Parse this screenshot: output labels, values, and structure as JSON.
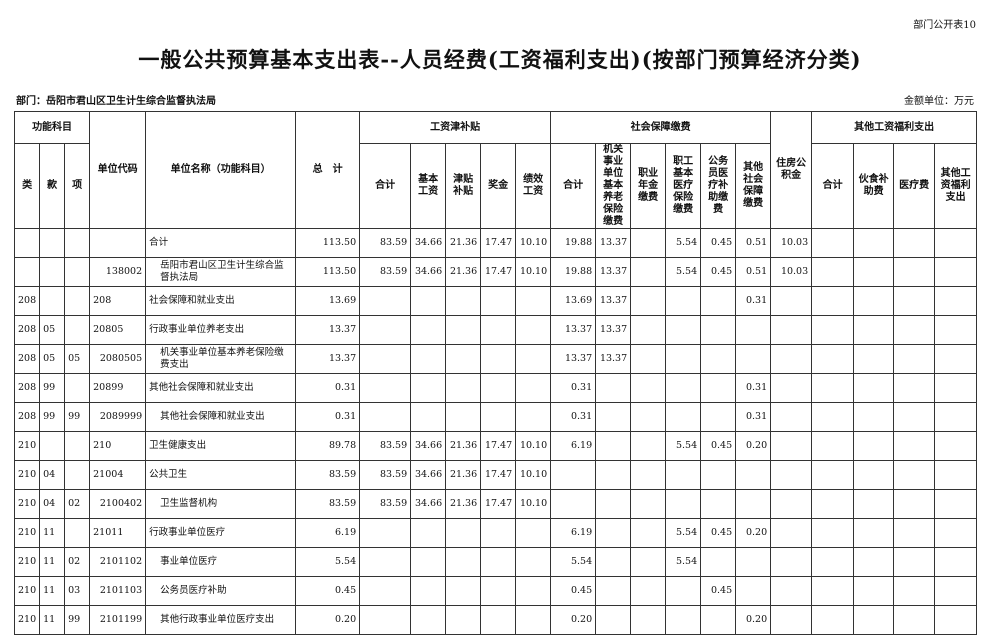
{
  "form_no": "部门公开表10",
  "title": "一般公共预算基本支出表--人员经费(工资福利支出)(按部门预算经济分类)",
  "department": "部门：岳阳市君山区卫生计生综合监督执法局",
  "unit": "金额单位：万元",
  "headers": {
    "func": "功能科目",
    "lei": "类",
    "kuan": "款",
    "xiang": "项",
    "code": "单位代码",
    "name": "单位名称（功能科目）",
    "total": "总　计",
    "wage": "工资津补贴",
    "wage_cols": [
      "合计",
      "基本工资",
      "津贴补贴",
      "奖金",
      "绩效工资"
    ],
    "social": "社会保障缴费",
    "social_cols": [
      "合计",
      "机关事业单位基本养老保险缴费",
      "职业年金缴费",
      "职工基本医疗保险缴费",
      "公务员医疗补助缴费",
      "其他社会保障缴费"
    ],
    "housing": "住房公积金",
    "other": "其他工资福利支出",
    "other_cols": [
      "合计",
      "伙食补助费",
      "医疗费",
      "其他工资福利支出"
    ]
  },
  "rows": [
    [
      "",
      "",
      "",
      "",
      "合计",
      "113.50",
      "83.59",
      "34.66",
      "21.36",
      "17.47",
      "10.10",
      "19.88",
      "13.37",
      "",
      "5.54",
      "0.45",
      "0.51",
      "10.03",
      "",
      "",
      "",
      ""
    ],
    [
      "",
      "",
      "",
      "138002",
      "岳阳市君山区卫生计生综合监督执法局",
      "113.50",
      "83.59",
      "34.66",
      "21.36",
      "17.47",
      "10.10",
      "19.88",
      "13.37",
      "",
      "5.54",
      "0.45",
      "0.51",
      "10.03",
      "",
      "",
      "",
      ""
    ],
    [
      "208",
      "",
      "",
      "208",
      "社会保障和就业支出",
      "13.69",
      "",
      "",
      "",
      "",
      "",
      "13.69",
      "13.37",
      "",
      "",
      "",
      "0.31",
      "",
      "",
      "",
      "",
      ""
    ],
    [
      "208",
      "05",
      "",
      "20805",
      "行政事业单位养老支出",
      "13.37",
      "",
      "",
      "",
      "",
      "",
      "13.37",
      "13.37",
      "",
      "",
      "",
      "",
      "",
      "",
      "",
      "",
      ""
    ],
    [
      "208",
      "05",
      "05",
      "2080505",
      "机关事业单位基本养老保险缴费支出",
      "13.37",
      "",
      "",
      "",
      "",
      "",
      "13.37",
      "13.37",
      "",
      "",
      "",
      "",
      "",
      "",
      "",
      "",
      ""
    ],
    [
      "208",
      "99",
      "",
      "20899",
      "其他社会保障和就业支出",
      "0.31",
      "",
      "",
      "",
      "",
      "",
      "0.31",
      "",
      "",
      "",
      "",
      "0.31",
      "",
      "",
      "",
      "",
      ""
    ],
    [
      "208",
      "99",
      "99",
      "2089999",
      "其他社会保障和就业支出",
      "0.31",
      "",
      "",
      "",
      "",
      "",
      "0.31",
      "",
      "",
      "",
      "",
      "0.31",
      "",
      "",
      "",
      "",
      ""
    ],
    [
      "210",
      "",
      "",
      "210",
      "卫生健康支出",
      "89.78",
      "83.59",
      "34.66",
      "21.36",
      "17.47",
      "10.10",
      "6.19",
      "",
      "",
      "5.54",
      "0.45",
      "0.20",
      "",
      "",
      "",
      "",
      ""
    ],
    [
      "210",
      "04",
      "",
      "21004",
      "公共卫生",
      "83.59",
      "83.59",
      "34.66",
      "21.36",
      "17.47",
      "10.10",
      "",
      "",
      "",
      "",
      "",
      "",
      "",
      "",
      "",
      "",
      ""
    ],
    [
      "210",
      "04",
      "02",
      "2100402",
      "卫生监督机构",
      "83.59",
      "83.59",
      "34.66",
      "21.36",
      "17.47",
      "10.10",
      "",
      "",
      "",
      "",
      "",
      "",
      "",
      "",
      "",
      "",
      ""
    ],
    [
      "210",
      "11",
      "",
      "21011",
      "行政事业单位医疗",
      "6.19",
      "",
      "",
      "",
      "",
      "",
      "6.19",
      "",
      "",
      "5.54",
      "0.45",
      "0.20",
      "",
      "",
      "",
      "",
      ""
    ],
    [
      "210",
      "11",
      "02",
      "2101102",
      "事业单位医疗",
      "5.54",
      "",
      "",
      "",
      "",
      "",
      "5.54",
      "",
      "",
      "5.54",
      "",
      "",
      "",
      "",
      "",
      "",
      ""
    ],
    [
      "210",
      "11",
      "03",
      "2101103",
      "公务员医疗补助",
      "0.45",
      "",
      "",
      "",
      "",
      "",
      "0.45",
      "",
      "",
      "",
      "0.45",
      "",
      "",
      "",
      "",
      "",
      ""
    ],
    [
      "210",
      "11",
      "99",
      "2101199",
      "其他行政事业单位医疗支出",
      "0.20",
      "",
      "",
      "",
      "",
      "",
      "0.20",
      "",
      "",
      "",
      "",
      "0.20",
      "",
      "",
      "",
      "",
      ""
    ]
  ]
}
